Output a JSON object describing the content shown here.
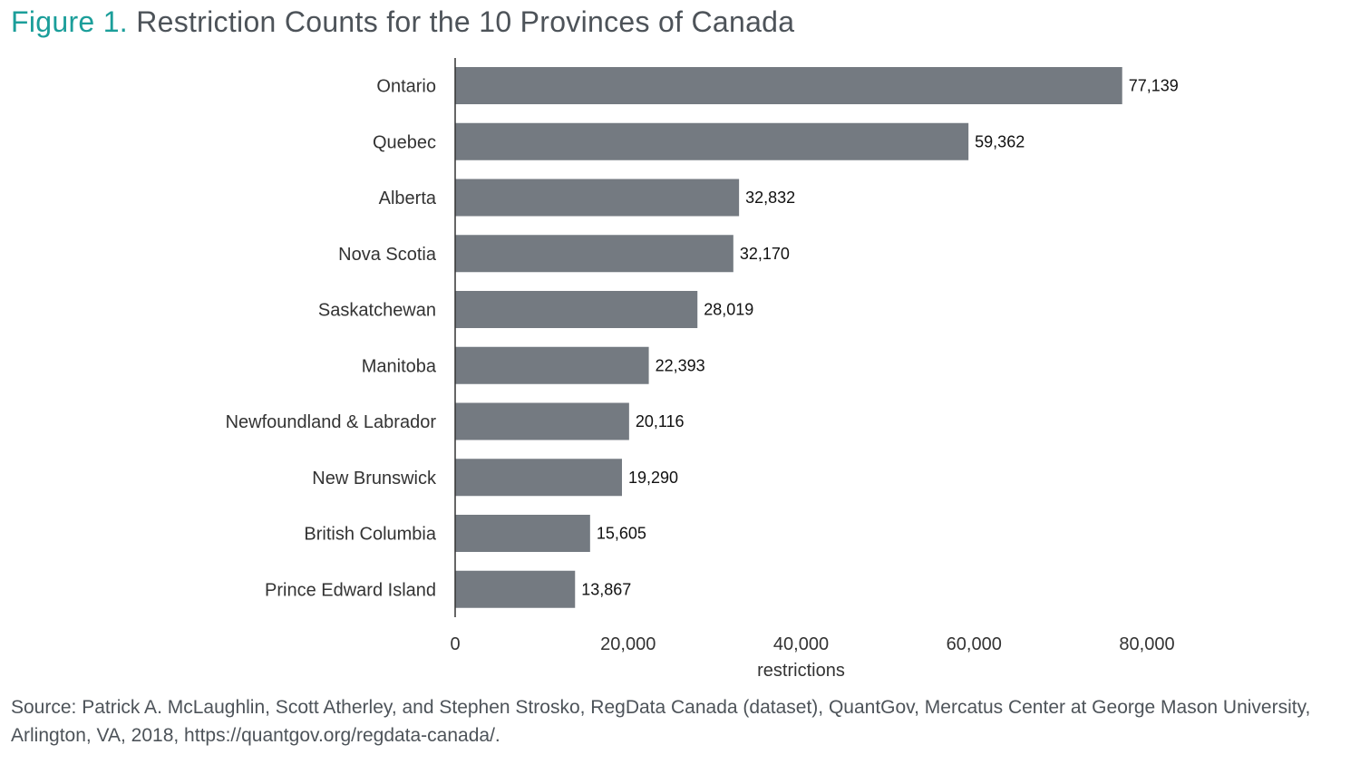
{
  "figure": {
    "label": "Figure 1.",
    "title": "Restriction Counts for the 10 Provinces of Canada"
  },
  "source": "Source: Patrick A. McLaughlin, Scott Atherley, and Stephen Strosko, RegData Canada (dataset), QuantGov, Mercatus Center at George Mason University, Arlington, VA, 2018, https://quantgov.org/regdata-canada/.",
  "colors": {
    "bar": "#747a81",
    "label": "#333333",
    "axis": "#333333",
    "title_accent": "#1b9e9a"
  },
  "chart_data": {
    "type": "bar",
    "orientation": "horizontal",
    "title": "Restriction Counts for the 10 Provinces of Canada",
    "xlabel": "restrictions",
    "ylabel": "",
    "xlim": [
      0,
      80000
    ],
    "xticks": [
      0,
      20000,
      40000,
      60000,
      80000
    ],
    "xtick_labels": [
      "0",
      "20,000",
      "40,000",
      "60,000",
      "80,000"
    ],
    "grid": false,
    "legend": "none",
    "categories": [
      "Ontario",
      "Quebec",
      "Alberta",
      "Nova Scotia",
      "Saskatchewan",
      "Manitoba",
      "Newfoundland & Labrador",
      "New Brunswick",
      "British Columbia",
      "Prince Edward Island"
    ],
    "values": [
      77139,
      59362,
      32832,
      32170,
      28019,
      22393,
      20116,
      19290,
      15605,
      13867
    ],
    "value_labels": [
      "77,139",
      "59,362",
      "32,832",
      "32,170",
      "28,019",
      "22,393",
      "20,116",
      "19,290",
      "15,605",
      "13,867"
    ]
  }
}
